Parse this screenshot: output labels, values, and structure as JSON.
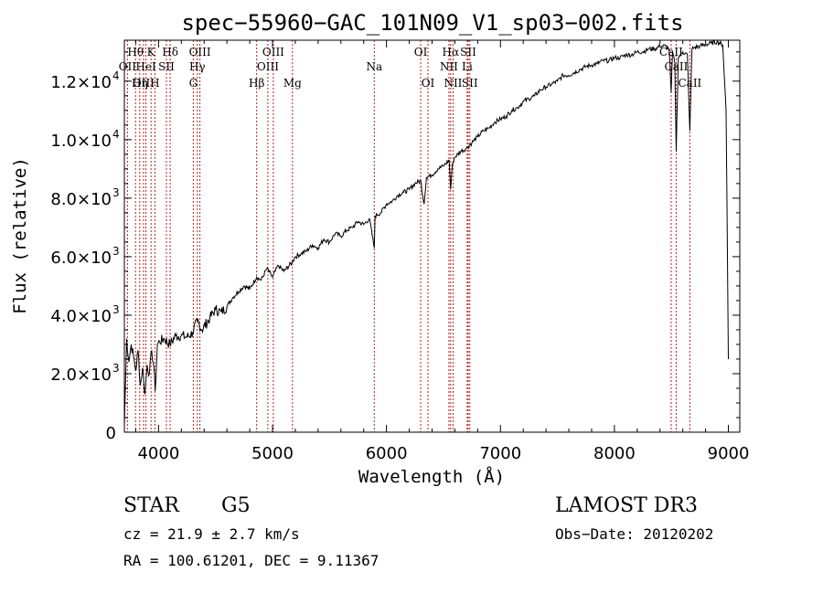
{
  "chart_data": {
    "type": "line",
    "title": "spec−55960−GAC_101N09_V1_sp03−002.fits",
    "xlabel": "Wavelength (Å)",
    "ylabel": "Flux (relative)",
    "xlim": [
      3700,
      9100
    ],
    "ylim": [
      0,
      13400
    ],
    "x_ticks": [
      {
        "value": 4000,
        "label": "4000"
      },
      {
        "value": 5000,
        "label": "5000"
      },
      {
        "value": 6000,
        "label": "6000"
      },
      {
        "value": 7000,
        "label": "7000"
      },
      {
        "value": 8000,
        "label": "8000"
      },
      {
        "value": 9000,
        "label": "9000"
      }
    ],
    "y_ticks": [
      {
        "value": 0,
        "mant": "0",
        "exp": ""
      },
      {
        "value": 2000,
        "mant": "2.0×10",
        "exp": "3"
      },
      {
        "value": 4000,
        "mant": "4.0×10",
        "exp": "3"
      },
      {
        "value": 6000,
        "mant": "6.0×10",
        "exp": "3"
      },
      {
        "value": 8000,
        "mant": "8.0×10",
        "exp": "3"
      },
      {
        "value": 10000,
        "mant": "1.0×10",
        "exp": "4"
      },
      {
        "value": 12000,
        "mant": "1.2×10",
        "exp": "4"
      }
    ],
    "line_color": "#000000",
    "marker_color": "#b22222",
    "series": [
      {
        "name": "spectrum",
        "x": [
          3700,
          3720,
          3740,
          3760,
          3780,
          3800,
          3820,
          3840,
          3860,
          3880,
          3900,
          3920,
          3940,
          3960,
          3970,
          3990,
          4010,
          4050,
          4100,
          4150,
          4200,
          4250,
          4300,
          4340,
          4380,
          4450,
          4500,
          4550,
          4600,
          4650,
          4700,
          4750,
          4800,
          4860,
          4900,
          4950,
          5000,
          5050,
          5100,
          5170,
          5200,
          5250,
          5300,
          5350,
          5400,
          5450,
          5500,
          5550,
          5600,
          5650,
          5700,
          5750,
          5800,
          5850,
          5893,
          5900,
          5950,
          6000,
          6050,
          6100,
          6150,
          6200,
          6250,
          6300,
          6330,
          6350,
          6400,
          6450,
          6500,
          6550,
          6563,
          6580,
          6600,
          6650,
          6700,
          6750,
          6800,
          6850,
          6900,
          6950,
          7000,
          7050,
          7100,
          7150,
          7200,
          7250,
          7300,
          7350,
          7400,
          7450,
          7500,
          7550,
          7600,
          7650,
          7700,
          7750,
          7800,
          7850,
          7900,
          7950,
          8000,
          8050,
          8100,
          8150,
          8200,
          8250,
          8300,
          8350,
          8400,
          8450,
          8480,
          8498,
          8510,
          8530,
          8542,
          8560,
          8600,
          8640,
          8662,
          8680,
          8700,
          8750,
          8800,
          8850,
          8900,
          8950,
          8980,
          9000
        ],
        "y": [
          200,
          3200,
          2400,
          3000,
          2600,
          2100,
          2800,
          1600,
          2200,
          1300,
          2300,
          2000,
          2800,
          2200,
          1400,
          3000,
          3100,
          3200,
          3000,
          3300,
          3300,
          3250,
          3400,
          3800,
          3500,
          3900,
          4200,
          4100,
          4300,
          4600,
          4800,
          5000,
          4900,
          5300,
          5200,
          5600,
          5300,
          5700,
          5500,
          5800,
          6000,
          6100,
          6200,
          6400,
          6300,
          6600,
          6500,
          6800,
          6700,
          6900,
          7000,
          7200,
          7100,
          7300,
          6300,
          7400,
          7500,
          7800,
          7900,
          8100,
          8200,
          8300,
          8500,
          8600,
          7800,
          8700,
          8800,
          9000,
          9100,
          9300,
          8300,
          9200,
          9400,
          9600,
          9700,
          9900,
          10100,
          10300,
          10400,
          10600,
          10700,
          10800,
          11000,
          11100,
          11300,
          11400,
          11500,
          11700,
          11800,
          11900,
          12000,
          12200,
          12200,
          12300,
          12400,
          12500,
          12550,
          12600,
          12700,
          12700,
          12800,
          12800,
          12900,
          12900,
          13000,
          13000,
          13100,
          13100,
          13200,
          13200,
          13100,
          11600,
          13000,
          12600,
          9600,
          12800,
          13000,
          12900,
          10300,
          13100,
          13150,
          13200,
          13250,
          13300,
          13350,
          13250,
          11000,
          2500
        ]
      }
    ],
    "spectral_lines": [
      {
        "label": "Hθ",
        "wavelength": 3798,
        "row": 1
      },
      {
        "label": "OII",
        "wavelength": 3727,
        "row": 2
      },
      {
        "label": "OIII",
        "wavelength": 3868,
        "row": 3
      },
      {
        "label": "K",
        "wavelength": 3934,
        "row": 1
      },
      {
        "label": "HeI",
        "wavelength": 3889,
        "row": 2
      },
      {
        "label": "Hη",
        "wavelength": 3835,
        "row": 3
      },
      {
        "label": "H",
        "wavelength": 3968,
        "row": 3
      },
      {
        "label": "SII",
        "wavelength": 4069,
        "row": 2
      },
      {
        "label": "Hδ",
        "wavelength": 4102,
        "row": 1
      },
      {
        "label": "OIII",
        "wavelength": 4363,
        "row": 1
      },
      {
        "label": "Hγ",
        "wavelength": 4340,
        "row": 2
      },
      {
        "label": "G",
        "wavelength": 4305,
        "row": 3
      },
      {
        "label": "Hβ",
        "wavelength": 4861,
        "row": 3
      },
      {
        "label": "OIII",
        "wavelength": 5007,
        "row": 1
      },
      {
        "label": "OIII",
        "wavelength": 4959,
        "row": 2
      },
      {
        "label": "Mg",
        "wavelength": 5175,
        "row": 3
      },
      {
        "label": "Na",
        "wavelength": 5893,
        "row": 2
      },
      {
        "label": "OI",
        "wavelength": 6300,
        "row": 1
      },
      {
        "label": "OI",
        "wavelength": 6364,
        "row": 3
      },
      {
        "label": "Hα",
        "wavelength": 6563,
        "row": 1
      },
      {
        "label": "NII",
        "wavelength": 6548,
        "row": 2
      },
      {
        "label": "NII",
        "wavelength": 6584,
        "row": 3
      },
      {
        "label": "SII",
        "wavelength": 6717,
        "row": 1
      },
      {
        "label": "Li",
        "wavelength": 6708,
        "row": 2
      },
      {
        "label": "SII",
        "wavelength": 6731,
        "row": 3
      },
      {
        "label": "CaII",
        "wavelength": 8498,
        "row": 1
      },
      {
        "label": "CaII",
        "wavelength": 8542,
        "row": 2
      },
      {
        "label": "CaII",
        "wavelength": 8662,
        "row": 3
      }
    ]
  },
  "info": {
    "object_class": "STAR",
    "subclass": "G5",
    "survey": "LAMOST DR3",
    "redshift": "cz = 21.9 ± 2.7 km/s",
    "obs_date": "Obs−Date: 20120202",
    "coords": "RA = 100.61201, DEC =    9.11367"
  }
}
